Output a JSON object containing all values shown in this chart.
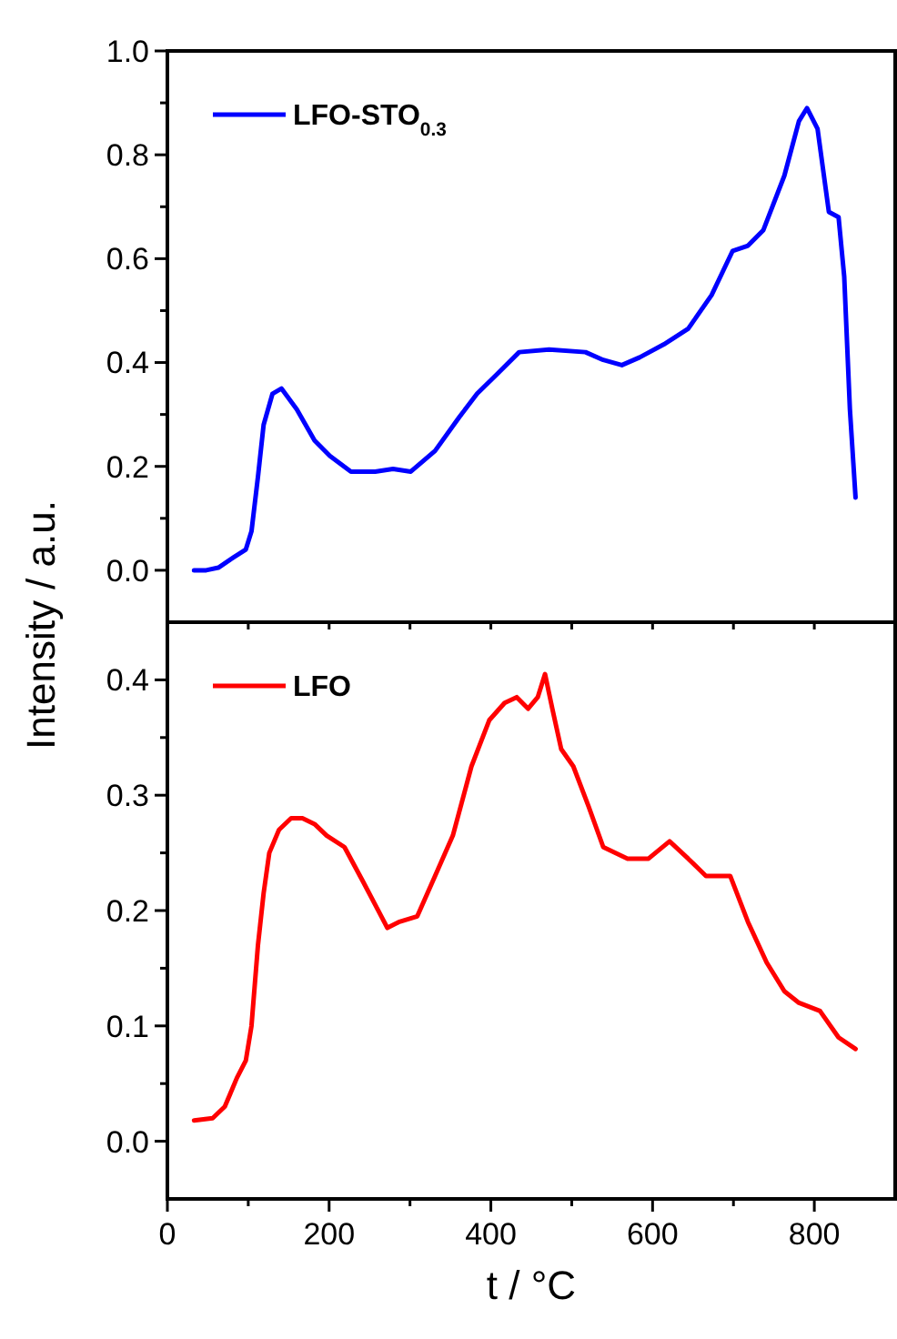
{
  "chart_data": [
    {
      "type": "line",
      "ylabel": "Intensity / a.u.",
      "legend": "top left",
      "tick_labels": "y",
      "xlim": [
        0,
        900
      ],
      "xticks": [
        {
          "value": 0,
          "label": null
        },
        {
          "value": 100,
          "label": null
        },
        {
          "value": 200,
          "label": null
        },
        {
          "value": 300,
          "label": null
        },
        {
          "value": 400,
          "label": null
        },
        {
          "value": 500,
          "label": null
        },
        {
          "value": 600,
          "label": null
        },
        {
          "value": 700,
          "label": null
        },
        {
          "value": 800,
          "label": null
        }
      ],
      "ylim": [
        -0.1,
        1.0
      ],
      "yticks": [
        {
          "value": 0,
          "label": "0.0"
        },
        {
          "value": 0.1,
          "label": null
        },
        {
          "value": 0.2,
          "label": "0.2"
        },
        {
          "value": 0.3,
          "label": null
        },
        {
          "value": 0.4,
          "label": "0.4"
        },
        {
          "value": 0.5,
          "label": null
        },
        {
          "value": 0.6,
          "label": "0.6"
        },
        {
          "value": 0.7,
          "label": null
        },
        {
          "value": 0.8,
          "label": "0.8"
        },
        {
          "value": 0.9,
          "label": null
        },
        {
          "value": 1.0,
          "label": "1.0"
        }
      ],
      "series": [
        {
          "name": "LFO-STO$_{0.3}$",
          "color": "#0000ff",
          "x": [
            33,
            48,
            63,
            82,
            97,
            104,
            112,
            119,
            130,
            141,
            160,
            182,
            201,
            227,
            257,
            279,
            301,
            331,
            361,
            383,
            406,
            435,
            472,
            517,
            539,
            562,
            584,
            614,
            644,
            673,
            699,
            718,
            737,
            763,
            781,
            791,
            804,
            818,
            830,
            837,
            844,
            851
          ],
          "values": [
            0.0,
            0.0,
            0.005,
            0.025,
            0.04,
            0.075,
            0.18,
            0.28,
            0.34,
            0.35,
            0.31,
            0.25,
            0.22,
            0.19,
            0.19,
            0.195,
            0.19,
            0.23,
            0.295,
            0.34,
            0.375,
            0.42,
            0.425,
            0.42,
            0.405,
            0.395,
            0.41,
            0.435,
            0.465,
            0.53,
            0.615,
            0.625,
            0.655,
            0.76,
            0.865,
            0.89,
            0.85,
            0.69,
            0.68,
            0.565,
            0.31,
            0.14
          ]
        }
      ]
    },
    {
      "type": "line",
      "xlabel": "t / °C",
      "legend": "top left",
      "xlim": [
        0,
        900
      ],
      "xticks": [
        0,
        {
          "value": 100,
          "label": null
        },
        200,
        {
          "value": 300,
          "label": null
        },
        400,
        {
          "value": 500,
          "label": null
        },
        600,
        {
          "value": 700,
          "label": null
        },
        800
      ],
      "ylim": [
        -0.05,
        0.45
      ],
      "yticks": [
        {
          "value": 0,
          "label": "0.0"
        },
        {
          "value": 0.05,
          "label": null
        },
        0.1,
        {
          "value": 0.15,
          "label": null
        },
        0.2,
        {
          "value": 0.25,
          "label": null
        },
        0.3,
        {
          "value": 0.35,
          "label": null
        },
        0.4
      ],
      "series": [
        {
          "name": "LFO",
          "color": "#ff0000",
          "x": [
            33,
            56,
            71,
            86,
            97,
            104,
            112,
            119,
            126,
            138,
            153,
            167,
            182,
            197,
            219,
            242,
            257,
            272,
            286,
            309,
            331,
            353,
            376,
            398,
            417,
            432,
            446,
            458,
            467,
            476,
            487,
            502,
            521,
            539,
            569,
            595,
            621,
            644,
            666,
            696,
            718,
            741,
            763,
            781,
            807,
            830,
            851
          ],
          "values": [
            0.018,
            0.02,
            0.03,
            0.055,
            0.07,
            0.1,
            0.17,
            0.215,
            0.25,
            0.27,
            0.28,
            0.28,
            0.275,
            0.265,
            0.255,
            0.225,
            0.205,
            0.185,
            0.19,
            0.195,
            0.23,
            0.265,
            0.325,
            0.365,
            0.38,
            0.385,
            0.375,
            0.385,
            0.405,
            0.375,
            0.34,
            0.325,
            0.29,
            0.255,
            0.245,
            0.245,
            0.26,
            0.245,
            0.23,
            0.23,
            0.19,
            0.155,
            0.13,
            0.12,
            0.113,
            0.09,
            0.08
          ]
        }
      ]
    }
  ]
}
